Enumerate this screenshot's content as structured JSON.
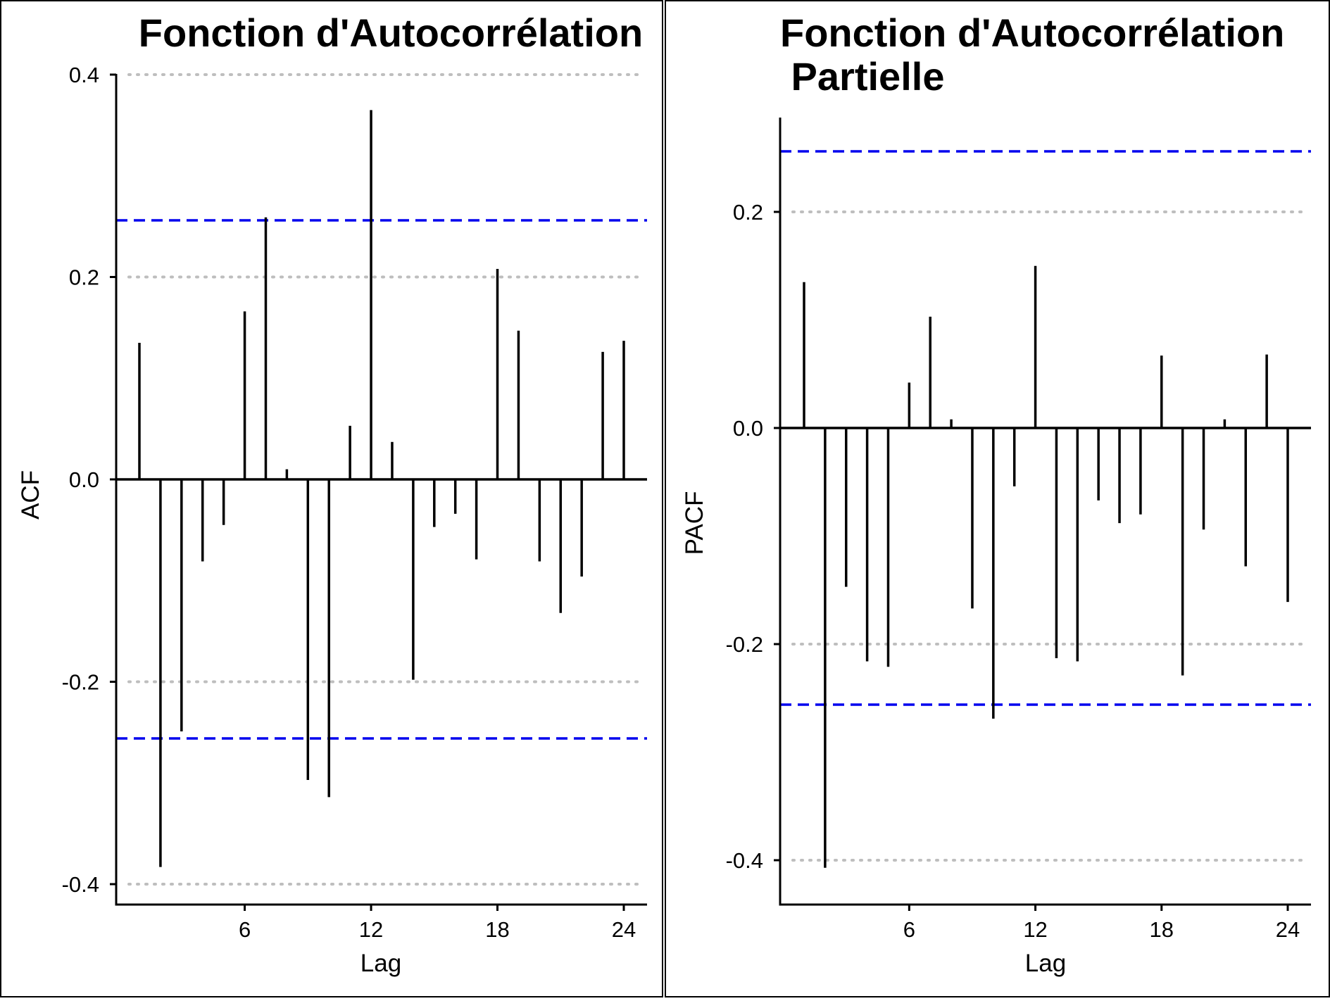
{
  "chart_data": [
    {
      "type": "bar",
      "title": "Fonction d'Autocorrélation",
      "xlabel": "Lag",
      "ylabel": "ACF",
      "xlim": [
        0,
        25
      ],
      "ylim": [
        -0.42,
        0.4
      ],
      "x_ticks": [
        6,
        12,
        18,
        24
      ],
      "x_tick_labels": [
        "6",
        "12",
        "18",
        "24"
      ],
      "y_ticks": [
        -0.4,
        -0.2,
        0.0,
        0.2,
        0.4
      ],
      "y_tick_labels": [
        "-0.4",
        "-0.2",
        "0.0",
        "0.2",
        "0.4"
      ],
      "grid": "dotted-horizontal",
      "confidence_bounds": [
        0.256,
        -0.256
      ],
      "confidence_color": "#0000ee",
      "lags": [
        1,
        2,
        3,
        4,
        5,
        6,
        7,
        8,
        9,
        10,
        11,
        12,
        13,
        14,
        15,
        16,
        17,
        18,
        19,
        20,
        21,
        22,
        23,
        24
      ],
      "values": [
        0.135,
        -0.383,
        -0.249,
        -0.081,
        -0.045,
        0.166,
        0.259,
        0.01,
        -0.297,
        -0.314,
        0.053,
        0.365,
        0.037,
        -0.198,
        -0.047,
        -0.034,
        -0.079,
        0.208,
        0.147,
        -0.081,
        -0.132,
        -0.096,
        0.126,
        0.137
      ]
    },
    {
      "type": "bar",
      "title": "Fonction d'Autocorrélation\nPartielle",
      "title_lines": [
        "Fonction d'Autocorrélation",
        " Partielle"
      ],
      "xlabel": "Lag",
      "ylabel": "PACF",
      "xlim": [
        0,
        25
      ],
      "ylim": [
        -0.44,
        0.29
      ],
      "x_ticks": [
        6,
        12,
        18,
        24
      ],
      "x_tick_labels": [
        "6",
        "12",
        "18",
        "24"
      ],
      "y_ticks": [
        -0.4,
        -0.2,
        0.0,
        0.2
      ],
      "y_tick_labels": [
        "-0.4",
        "-0.2",
        "0.0",
        "0.2"
      ],
      "grid": "dotted-horizontal",
      "confidence_bounds": [
        0.256,
        -0.256
      ],
      "confidence_color": "#0000ee",
      "lags": [
        1,
        2,
        3,
        4,
        5,
        6,
        7,
        8,
        9,
        10,
        11,
        12,
        13,
        14,
        15,
        16,
        17,
        18,
        19,
        20,
        21,
        22,
        23,
        24
      ],
      "values": [
        0.135,
        -0.407,
        -0.147,
        -0.216,
        -0.221,
        0.042,
        0.103,
        0.008,
        -0.167,
        -0.269,
        -0.054,
        0.15,
        -0.213,
        -0.216,
        -0.067,
        -0.088,
        -0.08,
        0.067,
        -0.229,
        -0.094,
        0.008,
        -0.128,
        0.068,
        -0.161
      ]
    }
  ]
}
